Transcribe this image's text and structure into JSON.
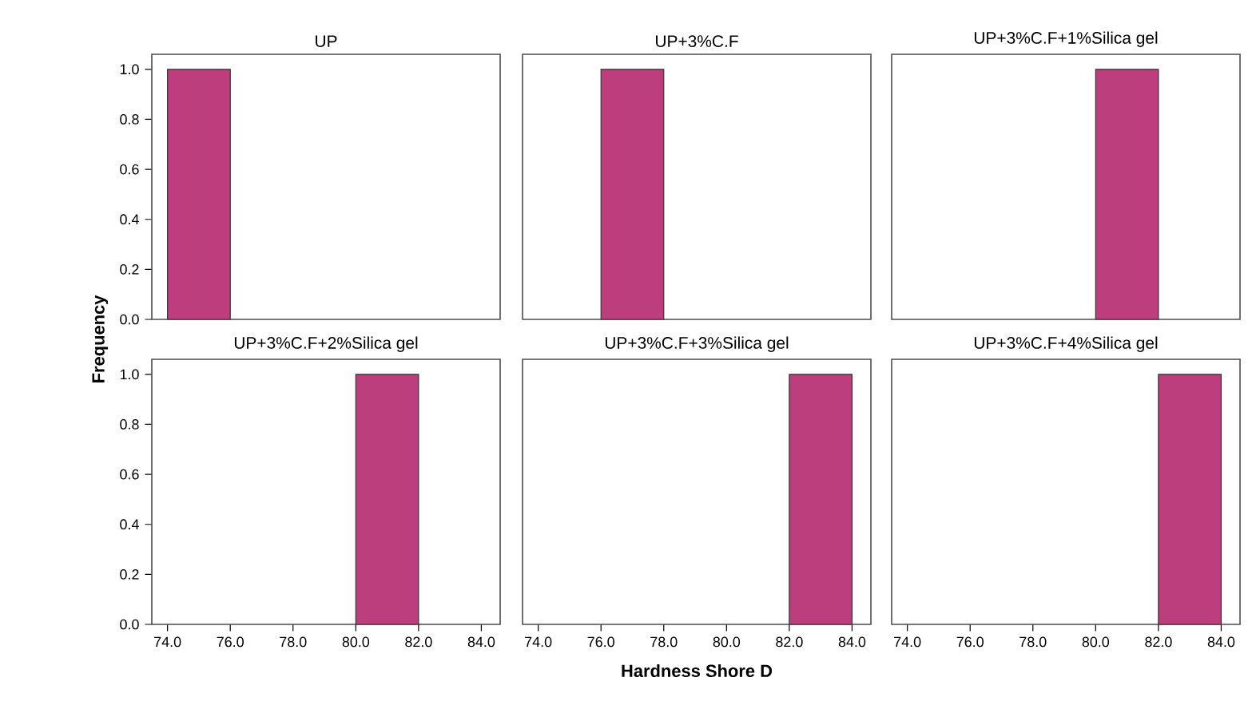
{
  "chart_data": [
    {
      "type": "histogram",
      "title": "UP",
      "ylabel": "Frequency",
      "bins": [
        74,
        76,
        78,
        80,
        82,
        84
      ],
      "values": [
        1,
        0,
        0,
        0,
        0
      ],
      "color": "#bc3e7c",
      "xlim": [
        73.5,
        84.6
      ],
      "ylim": [
        0,
        1.06
      ],
      "yticks": [
        {
          "value": 0,
          "label": "0.0"
        },
        {
          "value": 0.2,
          "label": "0.2"
        },
        {
          "value": 0.4,
          "label": "0.4"
        },
        {
          "value": 0.6,
          "label": "0.6"
        },
        {
          "value": 0.8,
          "label": "0.8"
        },
        {
          "value": 1,
          "label": "1.0"
        }
      ],
      "tick_labels": "y"
    },
    {
      "type": "histogram",
      "title": "UP+3%C.F",
      "bins": [
        74,
        76,
        78,
        80,
        82,
        84
      ],
      "values": [
        0,
        1,
        0,
        0,
        0
      ],
      "color": "#bc3e7c",
      "xlim": [
        73.5,
        84.6
      ],
      "ylim": [
        0,
        1.06
      ],
      "tick_labels": false
    },
    {
      "type": "histogram",
      "title": "UP+3%C.F+1%Silica gel",
      "bins": [
        74,
        76,
        78,
        80,
        82,
        84
      ],
      "values": [
        0,
        0,
        0,
        1,
        0
      ],
      "color": "#bc3e7c",
      "xlim": [
        73.5,
        84.6
      ],
      "ylim": [
        0,
        1.06
      ],
      "tick_labels": false
    },
    {
      "type": "histogram",
      "title": "UP+3%C.F+2%Silica gel",
      "bins": [
        74,
        76,
        78,
        80,
        82,
        84
      ],
      "values": [
        0,
        0,
        0,
        1,
        0
      ],
      "color": "#bc3e7c",
      "xlim": [
        73.5,
        84.6
      ],
      "ylim": [
        0,
        1.06
      ],
      "xticks": [
        {
          "value": 74,
          "label": "74.0"
        },
        {
          "value": 76,
          "label": "76.0"
        },
        {
          "value": 78,
          "label": "78.0"
        },
        {
          "value": 80,
          "label": "80.0"
        },
        {
          "value": 82,
          "label": "82.0"
        },
        {
          "value": 84,
          "label": "84.0"
        }
      ],
      "yticks": [
        {
          "value": 0,
          "label": "0.0"
        },
        {
          "value": 0.2,
          "label": "0.2"
        },
        {
          "value": 0.4,
          "label": "0.4"
        },
        {
          "value": 0.6,
          "label": "0.6"
        },
        {
          "value": 0.8,
          "label": "0.8"
        },
        {
          "value": 1,
          "label": "1.0"
        }
      ]
    },
    {
      "type": "histogram",
      "title": "UP+3%C.F+3%Silica gel",
      "xlabel": "Hardness Shore D",
      "bins": [
        74,
        76,
        78,
        80,
        82,
        84
      ],
      "values": [
        0,
        0,
        0,
        0,
        1
      ],
      "color": "#bc3e7c",
      "xlim": [
        73.5,
        84.6
      ],
      "ylim": [
        0,
        1.06
      ],
      "xticks": [
        {
          "value": 74,
          "label": "74.0"
        },
        {
          "value": 76,
          "label": "76.0"
        },
        {
          "value": 78,
          "label": "78.0"
        },
        {
          "value": 80,
          "label": "80.0"
        },
        {
          "value": 82,
          "label": "82.0"
        },
        {
          "value": 84,
          "label": "84.0"
        }
      ],
      "tick_labels": "x"
    },
    {
      "type": "histogram",
      "title": "UP+3%C.F+4%Silica gel",
      "bins": [
        74,
        76,
        78,
        80,
        82,
        84
      ],
      "values": [
        0,
        0,
        0,
        0,
        1
      ],
      "color": "#bc3e7c",
      "xlim": [
        73.5,
        84.6
      ],
      "ylim": [
        0,
        1.06
      ],
      "xticks": [
        {
          "value": 74,
          "label": "74.0"
        },
        {
          "value": 76,
          "label": "76.0"
        },
        {
          "value": 78,
          "label": "78.0"
        },
        {
          "value": 80,
          "label": "80.0"
        },
        {
          "value": 82,
          "label": "82.0"
        },
        {
          "value": 84,
          "label": "84.0"
        }
      ],
      "tick_labels": "x"
    }
  ]
}
